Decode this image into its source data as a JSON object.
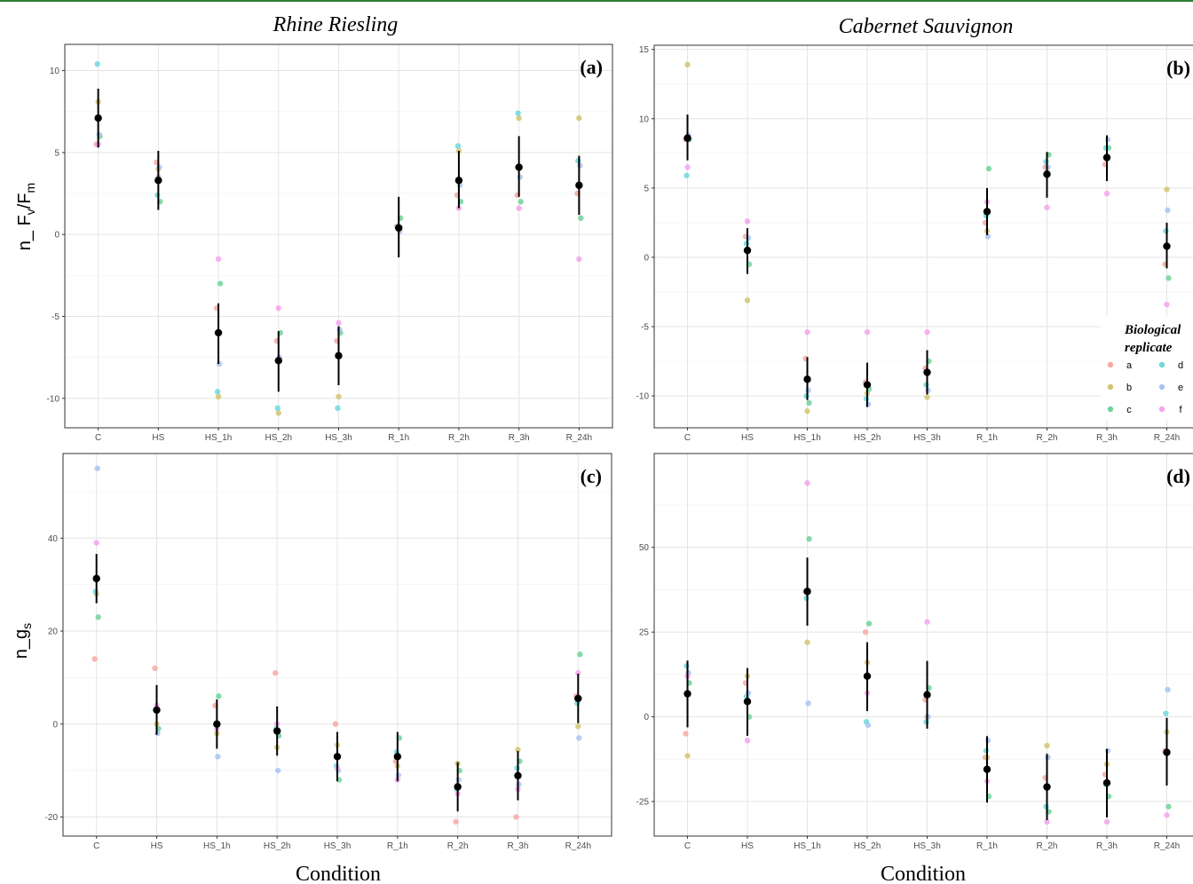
{
  "panel_titles": {
    "left": "Rhine Riesling",
    "right": "Cabernet Sauvignon"
  },
  "x_axis_title": "Condition",
  "y_axis": {
    "top_main": "n_ F",
    "top_v": "v",
    "top_slash": "/F",
    "top_m": "m",
    "bottom_main": "n_g",
    "bottom_s": "s"
  },
  "legend": {
    "title_line1": "Biological",
    "title_line2": "replicate",
    "entries": [
      {
        "key": "a",
        "color": "#f8a9a3"
      },
      {
        "key": "b",
        "color": "#d4c471"
      },
      {
        "key": "c",
        "color": "#6fd39a"
      },
      {
        "key": "d",
        "color": "#6fd8dd"
      },
      {
        "key": "e",
        "color": "#a9c3f2"
      },
      {
        "key": "f",
        "color": "#f5a3ec"
      }
    ]
  },
  "chart_data": [
    {
      "type": "scatter",
      "panel_label": "(a)",
      "title": "Rhine Riesling",
      "ylabel": "n_ Fv/Fm",
      "xlabel": "",
      "categories": [
        "C",
        "HS",
        "HS_1h",
        "HS_2h",
        "HS_3h",
        "R_1h",
        "R_2h",
        "R_3h",
        "R_24h"
      ],
      "ylim": [
        -11.8,
        11.6
      ],
      "yticks": [
        -10,
        -5,
        0,
        5,
        10
      ],
      "mean": [
        7.1,
        3.3,
        -6.0,
        -7.7,
        -7.4,
        0.4,
        3.3,
        4.1,
        3.0
      ],
      "err_low": [
        5.3,
        1.5,
        -7.9,
        -9.6,
        -9.2,
        -1.4,
        1.6,
        2.3,
        1.2
      ],
      "err_high": [
        8.9,
        5.1,
        -4.2,
        -5.9,
        -5.6,
        2.3,
        5.1,
        6.0,
        4.8
      ],
      "replicates": [
        {
          "key": "a",
          "values": [
            5.5,
            4.4,
            -4.5,
            -6.5,
            -6.5,
            0.5,
            2.4,
            2.4,
            2.5
          ]
        },
        {
          "key": "b",
          "values": [
            8.1,
            4.0,
            -9.9,
            -10.9,
            -9.9,
            0.3,
            5.1,
            7.1,
            7.1
          ]
        },
        {
          "key": "c",
          "values": [
            6.0,
            2.0,
            -3.0,
            -6.0,
            -6.0,
            1.0,
            2.0,
            2.0,
            1.0
          ]
        },
        {
          "key": "d",
          "values": [
            10.4,
            2.4,
            -9.6,
            -10.6,
            -10.6,
            0.5,
            5.4,
            7.4,
            4.5
          ]
        },
        {
          "key": "e",
          "values": [
            6.1,
            4.1,
            -7.9,
            -7.5,
            -5.8,
            0.2,
            3.0,
            3.5,
            4.2
          ]
        },
        {
          "key": "f",
          "values": [
            5.5,
            3.5,
            -1.5,
            -4.5,
            -5.4,
            0.4,
            1.6,
            1.6,
            -1.5
          ]
        }
      ]
    },
    {
      "type": "scatter",
      "panel_label": "(b)",
      "title": "Cabernet Sauvignon",
      "ylabel": "",
      "xlabel": "",
      "categories": [
        "C",
        "HS",
        "HS_1h",
        "HS_2h",
        "HS_3h",
        "R_1h",
        "R_2h",
        "R_3h",
        "R_24h"
      ],
      "ylim": [
        -12.3,
        15.3
      ],
      "yticks": [
        -10,
        -5,
        0,
        5,
        10,
        15
      ],
      "mean": [
        8.6,
        0.5,
        -8.8,
        -9.2,
        -8.3,
        3.3,
        6.0,
        7.2,
        0.8
      ],
      "err_low": [
        7.0,
        -1.2,
        -10.3,
        -10.8,
        -9.9,
        1.6,
        4.3,
        5.5,
        -0.8
      ],
      "err_high": [
        10.3,
        2.1,
        -7.2,
        -7.6,
        -6.7,
        5.0,
        7.6,
        8.8,
        2.5
      ],
      "replicates": [
        {
          "key": "a",
          "values": [
            8.5,
            1.5,
            -7.3,
            -9.0,
            -8.0,
            2.5,
            6.5,
            6.7,
            -0.5
          ]
        },
        {
          "key": "b",
          "values": [
            13.9,
            -3.1,
            -11.1,
            -9.8,
            -10.1,
            1.9,
            5.9,
            7.2,
            4.9
          ]
        },
        {
          "key": "c",
          "values": [
            8.5,
            -0.5,
            -10.5,
            -9.5,
            -7.5,
            6.4,
            7.4,
            7.9,
            -1.5
          ]
        },
        {
          "key": "d",
          "values": [
            5.9,
            1.0,
            -10.0,
            -10.2,
            -9.2,
            3.0,
            6.9,
            7.9,
            1.9
          ]
        },
        {
          "key": "e",
          "values": [
            8.8,
            1.4,
            -9.6,
            -10.6,
            -9.6,
            1.5,
            6.5,
            8.5,
            3.4
          ]
        },
        {
          "key": "f",
          "values": [
            6.5,
            2.6,
            -5.4,
            -5.4,
            -5.4,
            4.0,
            3.6,
            4.6,
            -3.4
          ]
        }
      ]
    },
    {
      "type": "scatter",
      "panel_label": "(c)",
      "title": "",
      "ylabel": "n_gs",
      "xlabel": "Condition",
      "categories": [
        "C",
        "HS",
        "HS_1h",
        "HS_2h",
        "HS_3h",
        "R_1h",
        "R_2h",
        "R_3h",
        "R_24h"
      ],
      "ylim": [
        -24.1,
        58.2
      ],
      "yticks": [
        -20,
        0,
        20,
        40
      ],
      "mean": [
        31.3,
        3.0,
        0.0,
        -1.5,
        -7.0,
        -7.0,
        -13.5,
        -11.1,
        5.5
      ],
      "err_low": [
        26.0,
        -2.3,
        -5.3,
        -6.8,
        -12.3,
        -12.3,
        -18.8,
        -16.4,
        0.2
      ],
      "err_high": [
        36.6,
        8.4,
        5.3,
        3.8,
        -1.7,
        -1.7,
        -8.2,
        -5.8,
        10.8
      ],
      "replicates": [
        {
          "key": "a",
          "values": [
            14.0,
            12.0,
            4.0,
            11.0,
            0.0,
            -8.0,
            -21.0,
            -20.0,
            6.0
          ]
        },
        {
          "key": "b",
          "values": [
            28.0,
            0.0,
            -2.0,
            -5.0,
            -4.5,
            -9.0,
            -8.5,
            -5.5,
            -0.5
          ]
        },
        {
          "key": "c",
          "values": [
            23.0,
            -1.0,
            6.0,
            -2.5,
            -12.0,
            -3.0,
            -10.0,
            -8.0,
            15.0
          ]
        },
        {
          "key": "d",
          "values": [
            28.5,
            3.0,
            0.0,
            -1.0,
            -9.0,
            -6.0,
            -14.0,
            -9.5,
            4.5
          ]
        },
        {
          "key": "e",
          "values": [
            55.0,
            -2.0,
            -7.0,
            -10.0,
            -10.0,
            -11.0,
            -12.0,
            -13.0,
            -3.0
          ]
        },
        {
          "key": "f",
          "values": [
            39.0,
            4.0,
            -1.0,
            0.0,
            -9.5,
            -12.0,
            -15.0,
            -14.0,
            11.0
          ]
        }
      ]
    },
    {
      "type": "scatter",
      "panel_label": "(d)",
      "title": "",
      "ylabel": "",
      "xlabel": "Condition",
      "categories": [
        "C",
        "HS",
        "HS_1h",
        "HS_2h",
        "HS_3h",
        "R_1h",
        "R_2h",
        "R_3h",
        "R_24h"
      ],
      "ylim": [
        -35.2,
        77.7
      ],
      "yticks": [
        -25,
        0,
        25,
        50
      ],
      "mean": [
        6.8,
        4.5,
        37.0,
        12.0,
        6.5,
        -15.5,
        -20.7,
        -19.5,
        -10.5
      ],
      "err_low": [
        -3.1,
        -5.6,
        26.9,
        1.7,
        -3.5,
        -25.3,
        -30.5,
        -29.7,
        -20.3
      ],
      "err_high": [
        16.6,
        14.4,
        47.0,
        22.0,
        16.5,
        -5.7,
        -10.9,
        -9.5,
        -0.3
      ],
      "replicates": [
        {
          "key": "a",
          "values": [
            -5.0,
            10.0,
            37.0,
            25.0,
            5.0,
            -12.0,
            -18.0,
            -17.0,
            -10.0
          ]
        },
        {
          "key": "b",
          "values": [
            -11.5,
            12.0,
            22.0,
            16.0,
            0.0,
            -12.0,
            -8.5,
            -14.0,
            -4.5
          ]
        },
        {
          "key": "c",
          "values": [
            10.0,
            0.0,
            52.5,
            27.5,
            8.5,
            -23.5,
            -28.0,
            -23.5,
            -26.5
          ]
        },
        {
          "key": "d",
          "values": [
            15.0,
            6.0,
            35.0,
            -1.5,
            -1.5,
            -10.0,
            -26.5,
            -20.0,
            1.0
          ]
        },
        {
          "key": "e",
          "values": [
            13.0,
            7.0,
            4.0,
            -2.5,
            0.0,
            -7.0,
            -12.0,
            -10.0,
            8.0
          ]
        },
        {
          "key": "f",
          "values": [
            12.0,
            -7.0,
            69.0,
            7.0,
            28.0,
            -19.0,
            -31.0,
            -31.0,
            -29.0
          ]
        }
      ]
    }
  ]
}
